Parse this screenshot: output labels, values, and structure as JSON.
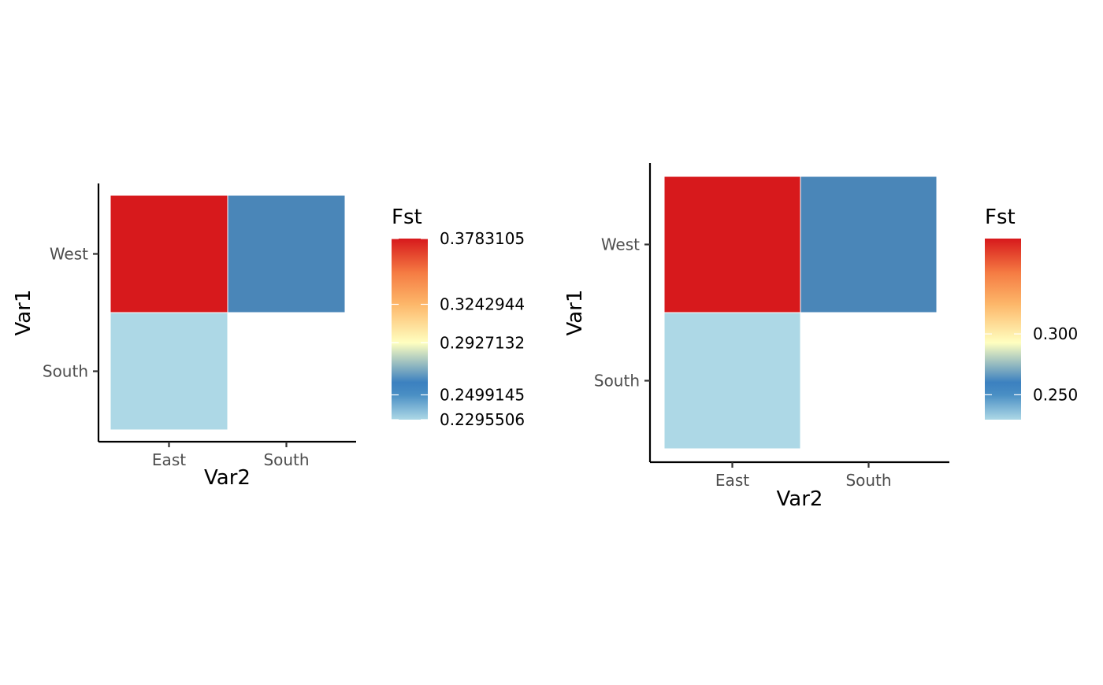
{
  "chart_data": [
    {
      "type": "heatmap",
      "xlabel": "Var2",
      "ylabel": "Var1",
      "x_categories": [
        "East",
        "South"
      ],
      "y_categories": [
        "West",
        "South"
      ],
      "cells": [
        {
          "x": "East",
          "y": "West",
          "value": 0.3783105
        },
        {
          "x": "South",
          "y": "West",
          "value": 0.2499145
        },
        {
          "x": "East",
          "y": "South",
          "value": 0.2295506
        }
      ],
      "legend": {
        "title": "Fst",
        "breaks": [
          0.3783105,
          0.3242944,
          0.2927132,
          0.2499145,
          0.2295506
        ],
        "labels": [
          "0.3783105",
          "0.3242944",
          "0.2927132",
          "0.2499145",
          "0.2295506"
        ],
        "range": [
          0.2295506,
          0.3783105
        ],
        "placement": "right"
      },
      "grid": false
    },
    {
      "type": "heatmap",
      "xlabel": "Var2",
      "ylabel": "Var1",
      "x_categories": [
        "East",
        "South"
      ],
      "y_categories": [
        "West",
        "South"
      ],
      "cells": [
        {
          "x": "East",
          "y": "West",
          "value": 0.3783105
        },
        {
          "x": "South",
          "y": "West",
          "value": 0.2499145
        },
        {
          "x": "East",
          "y": "South",
          "value": 0.2295506
        }
      ],
      "legend": {
        "title": "Fst",
        "breaks": [
          0.3,
          0.25
        ],
        "labels": [
          "0.300",
          "0.250"
        ],
        "range": [
          0.2295506,
          0.3783105
        ],
        "placement": "right"
      },
      "grid": false
    }
  ],
  "colors": {
    "gradient_stops": [
      {
        "value": 0.2295506,
        "color": "#add8e6"
      },
      {
        "value": 0.2499145,
        "color": "#4a8fc4"
      },
      {
        "value": 0.26,
        "color": "#3b80c0"
      },
      {
        "value": 0.2927132,
        "color": "#ffffc0"
      },
      {
        "value": 0.3242944,
        "color": "#fdb76a"
      },
      {
        "value": 0.35,
        "color": "#f57c43"
      },
      {
        "value": 0.3783105,
        "color": "#d7191c"
      }
    ],
    "cell_colors": {
      "0.3783105": "#d7191c",
      "0.2499145": "#4a86b8",
      "0.2295506": "#add8e6"
    }
  }
}
